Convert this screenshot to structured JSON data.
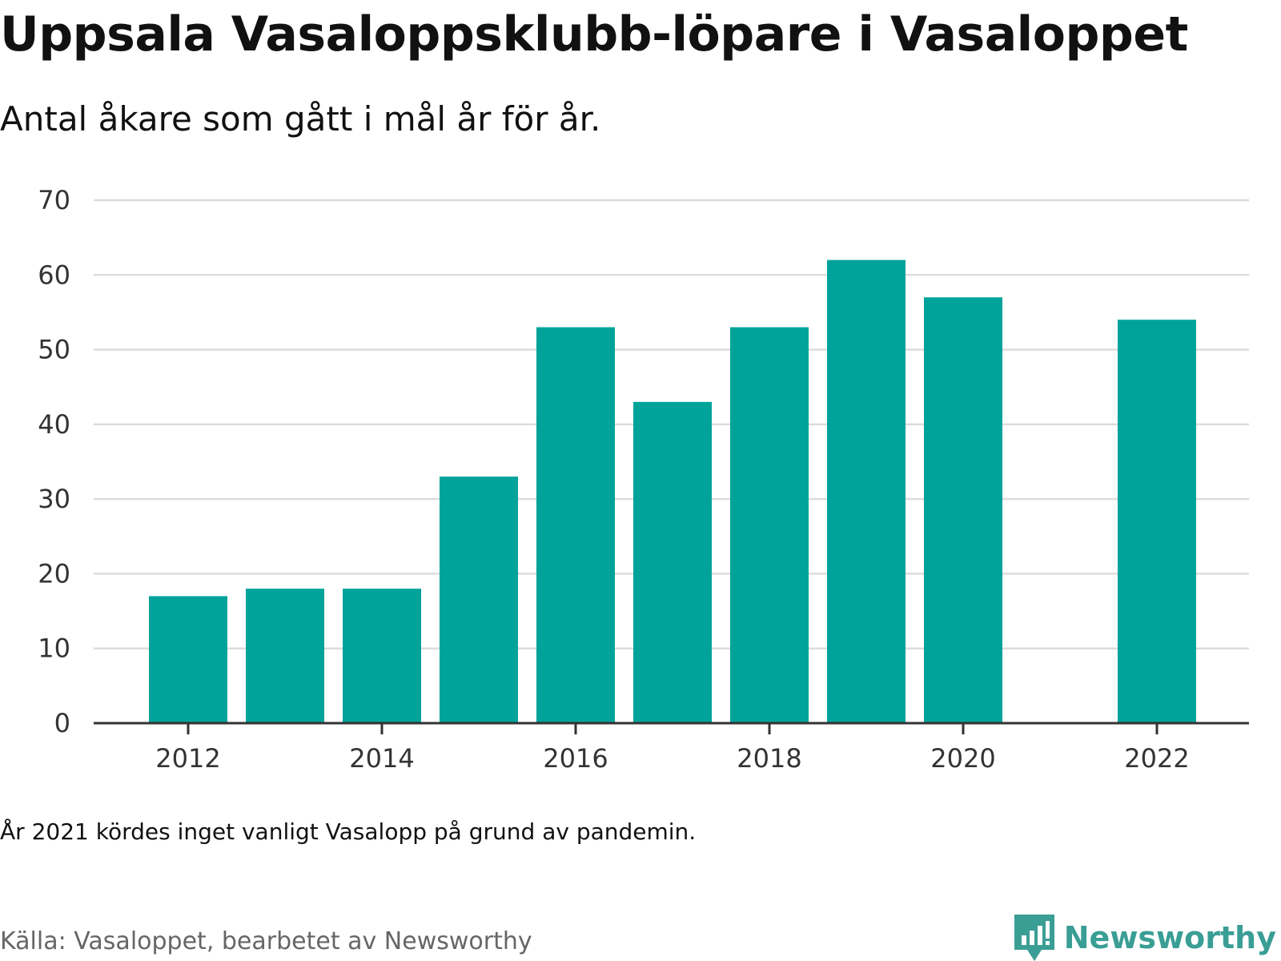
{
  "header": {
    "title": "Uppsala Vasaloppsklubb-löpare i Vasaloppet",
    "subtitle": "Antal åkare som gått i mål år för år."
  },
  "footer": {
    "note": "År 2021 kördes inget vanligt Vasalopp på grund av pandemin.",
    "source": "Källa: Vasaloppet, bearbetet av Newsworthy",
    "brand": "Newsworthy"
  },
  "colors": {
    "bar": "#00a39a",
    "grid": "#dcdcdc",
    "axis": "#333333",
    "brand": "#3a9e95"
  },
  "icons": {
    "logo": "newsworthy-logo-icon"
  },
  "chart_data": {
    "type": "bar",
    "title": "Uppsala Vasaloppsklubb-löpare i Vasaloppet",
    "subtitle": "Antal åkare som gått i mål år för år.",
    "xlabel": "",
    "ylabel": "",
    "categories": [
      2012,
      2013,
      2014,
      2015,
      2016,
      2017,
      2018,
      2019,
      2020,
      2021,
      2022
    ],
    "values": [
      17,
      18,
      18,
      33,
      53,
      43,
      53,
      62,
      57,
      null,
      54
    ],
    "xticks": [
      2012,
      2014,
      2016,
      2018,
      2020,
      2022
    ],
    "yticks": [
      0,
      10,
      20,
      30,
      40,
      50,
      60,
      70
    ],
    "ylim": [
      0,
      70
    ],
    "grid": true,
    "legend": "none"
  }
}
